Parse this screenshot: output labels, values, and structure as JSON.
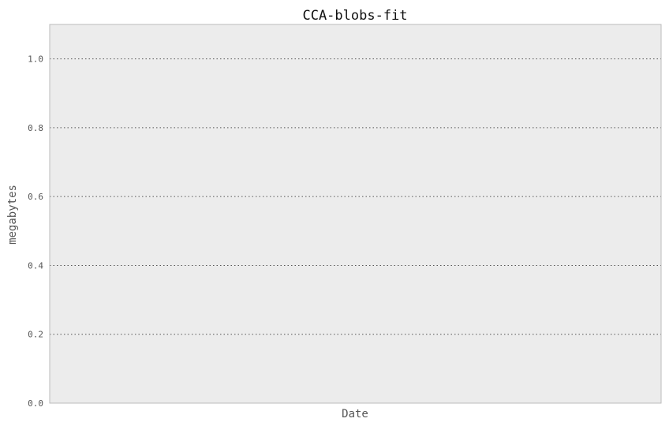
{
  "chart_data": {
    "type": "line",
    "title": "CCA-blobs-fit",
    "xlabel": "Date",
    "ylabel": "megabytes",
    "ylim": [
      0,
      1.1
    ],
    "yticks": [
      "0.0",
      "0.2",
      "0.4",
      "0.6",
      "0.8",
      "1.0"
    ],
    "ytick_values": [
      0,
      0.2,
      0.4,
      0.6,
      0.8,
      1.0
    ],
    "series": [],
    "grid": "horizontal-dotted",
    "colors": {
      "plot_background": "#ececec",
      "frame": "#bbbbbb",
      "grid": "#555555",
      "text": "#555555"
    }
  }
}
